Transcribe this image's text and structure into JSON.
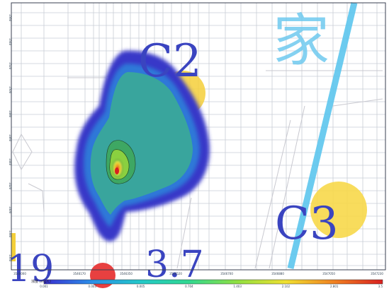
{
  "map": {
    "labels": {
      "c2": "C2",
      "c3": "C3",
      "n19": "19",
      "n37": "3.7",
      "chinese": "家"
    },
    "x_ticks": [
      "3546000",
      "3546170",
      "3546350",
      "3546520",
      "3546700",
      "3546880",
      "3547050",
      "3547230"
    ],
    "y_ticks": [
      "1560",
      "1540",
      "1520",
      "1500",
      "1480",
      "1460",
      "1440",
      "1420",
      "1400",
      "1380",
      "1360"
    ]
  },
  "legend": {
    "label": "浓度 (mg/L)",
    "values": [
      "0.001",
      "0.003",
      "0.005",
      "0.704",
      "1.403",
      "2.102",
      "2.801",
      "3.5"
    ],
    "colors": [
      "#3a2fd0",
      "#2a8fe8",
      "#22c8c8",
      "#30d890",
      "#90e040",
      "#f0e030",
      "#f08020",
      "#d82020"
    ]
  }
}
